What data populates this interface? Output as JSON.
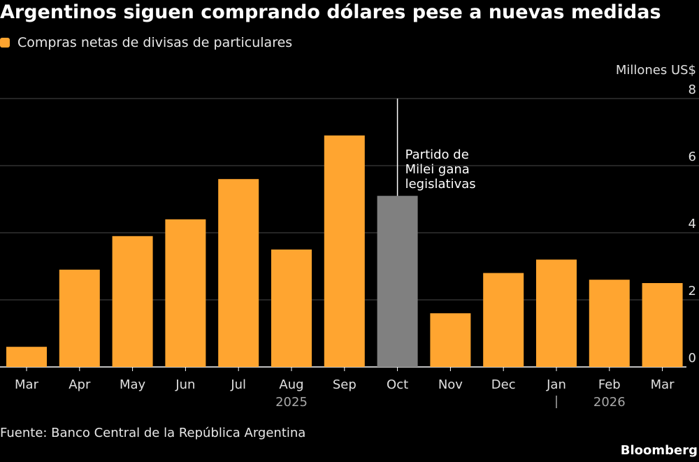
{
  "title": "Argentinos siguen comprando dólares pese a nuevas medidas",
  "source": "Fuente: Banco Central de la República Argentina",
  "brand": "Bloomberg",
  "colors": {
    "bar": "#FFA530",
    "highlight": "#808080",
    "grid": "#4a4a4a",
    "axis": "#ffffff",
    "text": "#e0e0e0",
    "muted": "#a8a8a8"
  },
  "chart_data": {
    "type": "bar",
    "ylabel": "Millones US$",
    "ylim": [
      0,
      8
    ],
    "yticks": [
      0,
      2,
      4,
      6,
      8
    ],
    "grid": true,
    "legend_position": "top-left",
    "categories": [
      "Mar",
      "Apr",
      "May",
      "Jun",
      "Jul",
      "Aug",
      "Sep",
      "Oct",
      "Nov",
      "Dec",
      "Jan",
      "Feb",
      "Mar"
    ],
    "series": [
      {
        "name": "Compras netas de divisas de particulares",
        "values": [
          0.6,
          2.9,
          3.9,
          4.4,
          5.6,
          3.5,
          6.9,
          5.1,
          1.6,
          2.8,
          3.2,
          2.6,
          2.5
        ]
      }
    ],
    "highlight_index": 7,
    "year_labels": [
      {
        "label": "2025",
        "category_index": 5
      },
      {
        "label": "2026",
        "category_index": 11
      }
    ],
    "year_separator_index": 10,
    "annotation": {
      "category_index": 7,
      "lines": [
        "Partido de",
        "Milei gana",
        "legislativas"
      ]
    }
  }
}
